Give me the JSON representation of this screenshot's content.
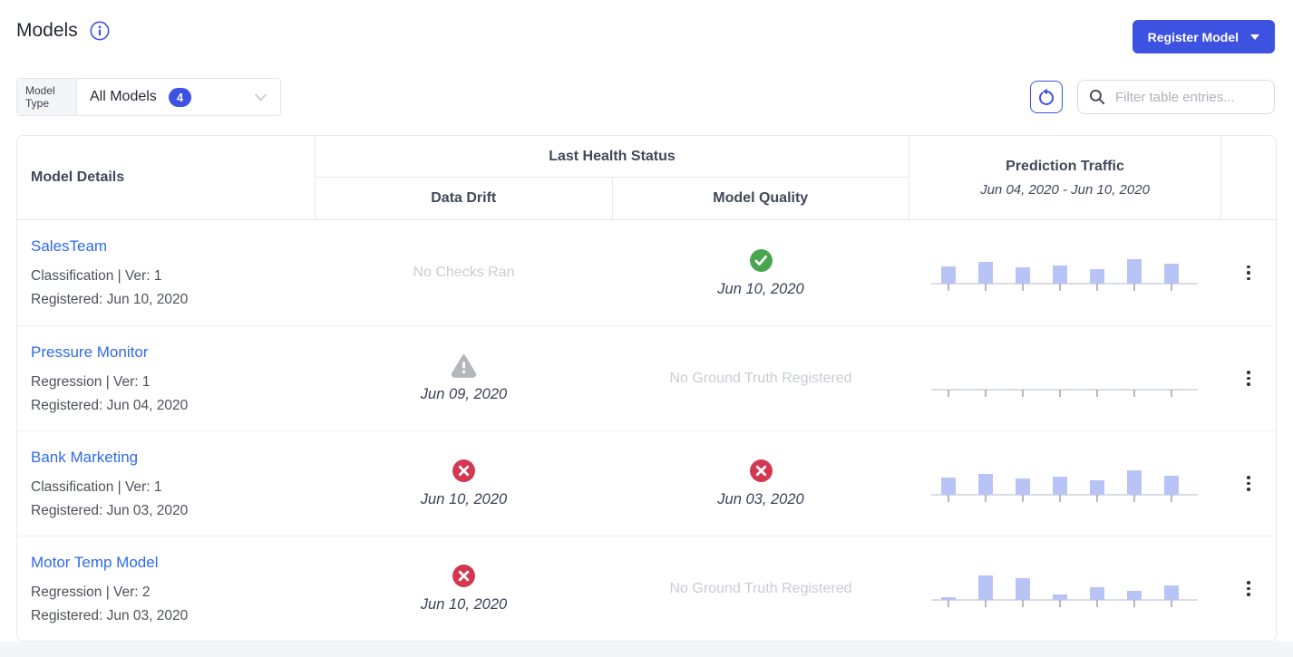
{
  "page": {
    "title": "Models"
  },
  "actions": {
    "register_model": "Register Model"
  },
  "filters": {
    "model_type_label": "Model Type",
    "model_type_value": "All Models",
    "model_type_count": "4",
    "search_placeholder": "Filter table entries..."
  },
  "table": {
    "columns": {
      "model_details": "Model Details",
      "last_health_status": "Last Health Status",
      "data_drift": "Data Drift",
      "model_quality": "Model Quality",
      "prediction_traffic": "Prediction Traffic",
      "prediction_traffic_range": "Jun 04, 2020 - Jun 10, 2020"
    },
    "rows": [
      {
        "name": "SalesTeam",
        "type_version": "Classification | Ver: 1",
        "registered": "Registered: Jun 10, 2020",
        "data_drift": {
          "status": "none",
          "text": "No Checks Ran"
        },
        "model_quality": {
          "status": "success",
          "date": "Jun 10, 2020"
        },
        "traffic": [
          0.55,
          0.72,
          0.52,
          0.6,
          0.46,
          0.8,
          0.65
        ]
      },
      {
        "name": "Pressure Monitor",
        "type_version": "Regression | Ver: 1",
        "registered": "Registered: Jun 04, 2020",
        "data_drift": {
          "status": "warning",
          "date": "Jun 09, 2020"
        },
        "model_quality": {
          "status": "none",
          "text": "No Ground Truth Registered"
        },
        "traffic": [
          0,
          0,
          0,
          0,
          0,
          0,
          0
        ]
      },
      {
        "name": "Bank Marketing",
        "type_version": "Classification | Ver: 1",
        "registered": "Registered: Jun 03, 2020",
        "data_drift": {
          "status": "failing",
          "date": "Jun 10, 2020"
        },
        "model_quality": {
          "status": "failing",
          "date": "Jun 03, 2020"
        },
        "traffic": [
          0.55,
          0.68,
          0.52,
          0.58,
          0.48,
          0.78,
          0.62
        ]
      },
      {
        "name": "Motor Temp Model",
        "type_version": "Regression | Ver: 2",
        "registered": "Registered: Jun 03, 2020",
        "data_drift": {
          "status": "failing",
          "date": "Jun 10, 2020"
        },
        "model_quality": {
          "status": "none",
          "text": "No Ground Truth Registered"
        },
        "traffic": [
          0.1,
          0.78,
          0.7,
          0.18,
          0.42,
          0.28,
          0.48
        ]
      }
    ]
  },
  "icons": {
    "info": "info-icon",
    "dropdown_caret": "chevron-down-icon",
    "refresh": "refresh-icon",
    "search": "search-icon",
    "success": "check-circle-icon",
    "failing": "x-circle-icon",
    "warning": "warning-triangle-icon",
    "row_menu": "kebab-menu-icon"
  },
  "colors": {
    "accent_blue": "#3d52e0",
    "link_blue": "#2e6bea",
    "success_green": "#47a64e",
    "error_red": "#d33852",
    "warning_gray": "#b4b6bb",
    "bar_fill": "#b9c4f6",
    "axis_line": "#d9dde8",
    "tick": "#9aa0ab"
  }
}
